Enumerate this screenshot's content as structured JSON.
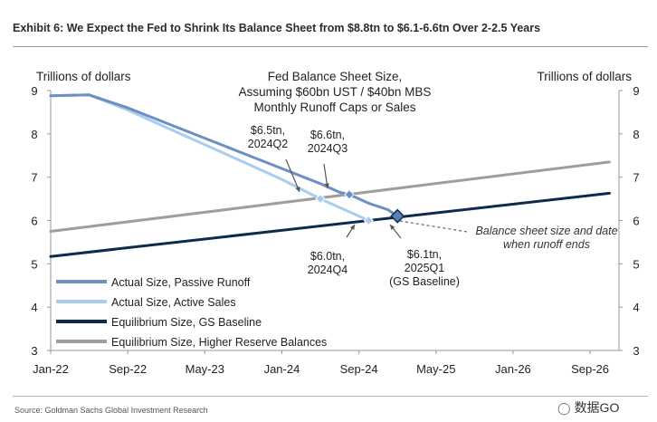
{
  "header": {
    "title": "Exhibit 6: We Expect the Fed to Shrink Its Balance Sheet from $8.8tn to $6.1-6.6tn Over 2-2.5 Years"
  },
  "footer": {
    "source": "Source: Goldman Sachs Global Investment Research",
    "watermark": "数据GO"
  },
  "chart_data": {
    "type": "line",
    "title": "Fed Balance Sheet Size, Assuming $60bn UST / $40bn MBS Monthly Runoff Caps or Sales",
    "title_lines": [
      "Fed Balance Sheet Size,",
      "Assuming $60bn UST / $40bn MBS",
      "Monthly Runoff Caps or Sales"
    ],
    "ylabel_left": "Trillions of dollars",
    "ylabel_right": "Trillions of dollars",
    "ylim": [
      3,
      9
    ],
    "yticks": [
      3,
      4,
      5,
      6,
      7,
      8,
      9
    ],
    "xlim": [
      "2022-01",
      "2026-12"
    ],
    "xticks": [
      "Jan-22",
      "Sep-22",
      "May-23",
      "Jan-24",
      "Sep-24",
      "May-25",
      "Jan-26",
      "Sep-26"
    ],
    "grid": false,
    "legend_position": "bottom-left",
    "colors": {
      "passive_runoff": "#6d8fc4",
      "active_sales": "#a9cdee",
      "equilibrium_gs": "#0e2a4f",
      "equilibrium_higher": "#9e9e9e",
      "annotation": "#555555"
    },
    "series": [
      {
        "name": "Actual Size, Passive Runoff",
        "color": "#6d8fc4",
        "points": [
          [
            "2022-01",
            8.88
          ],
          [
            "2022-05",
            8.9
          ],
          [
            "2022-09",
            8.6
          ],
          [
            "2023-01",
            8.25
          ],
          [
            "2023-05",
            7.9
          ],
          [
            "2023-09",
            7.55
          ],
          [
            "2024-01",
            7.2
          ],
          [
            "2024-05",
            6.85
          ],
          [
            "2024-07",
            6.65
          ],
          [
            "2024-08",
            6.6
          ],
          [
            "2024-10",
            6.4
          ],
          [
            "2024-12",
            6.25
          ],
          [
            "2025-01",
            6.1
          ]
        ]
      },
      {
        "name": "Actual Size, Active Sales",
        "color": "#a9cdee",
        "points": [
          [
            "2022-01",
            8.88
          ],
          [
            "2022-05",
            8.9
          ],
          [
            "2022-09",
            8.55
          ],
          [
            "2023-01",
            8.15
          ],
          [
            "2023-05",
            7.75
          ],
          [
            "2023-09",
            7.35
          ],
          [
            "2024-01",
            6.95
          ],
          [
            "2024-05",
            6.5
          ],
          [
            "2024-08",
            6.2
          ],
          [
            "2024-10",
            6.0
          ]
        ]
      },
      {
        "name": "Equilibrium Size, GS Baseline",
        "color": "#0e2a4f",
        "points": [
          [
            "2022-01",
            5.17
          ],
          [
            "2026-11",
            6.63
          ]
        ]
      },
      {
        "name": "Equilibrium Size, Higher Reserve Balances",
        "color": "#9e9e9e",
        "points": [
          [
            "2022-01",
            5.75
          ],
          [
            "2026-11",
            7.35
          ]
        ]
      }
    ],
    "markers": [
      {
        "x": "2024-05",
        "y": 6.5,
        "series": "Actual Size, Active Sales",
        "label_lines": [
          "$6.5tn,",
          "2024Q2"
        ]
      },
      {
        "x": "2024-08",
        "y": 6.6,
        "series": "Actual Size, Passive Runoff",
        "label_lines": [
          "$6.6tn,",
          "2024Q3"
        ]
      },
      {
        "x": "2024-10",
        "y": 6.0,
        "series": "Actual Size, Active Sales",
        "label_lines": [
          "$6.0tn,",
          "2024Q4"
        ]
      },
      {
        "x": "2025-01",
        "y": 6.1,
        "series": "Actual Size, Passive Runoff",
        "label_lines": [
          "$6.1tn,",
          "2025Q1",
          "(GS Baseline)"
        ]
      }
    ],
    "annotation": {
      "lines": [
        "Balance sheet size and date",
        "when runoff ends"
      ]
    }
  }
}
